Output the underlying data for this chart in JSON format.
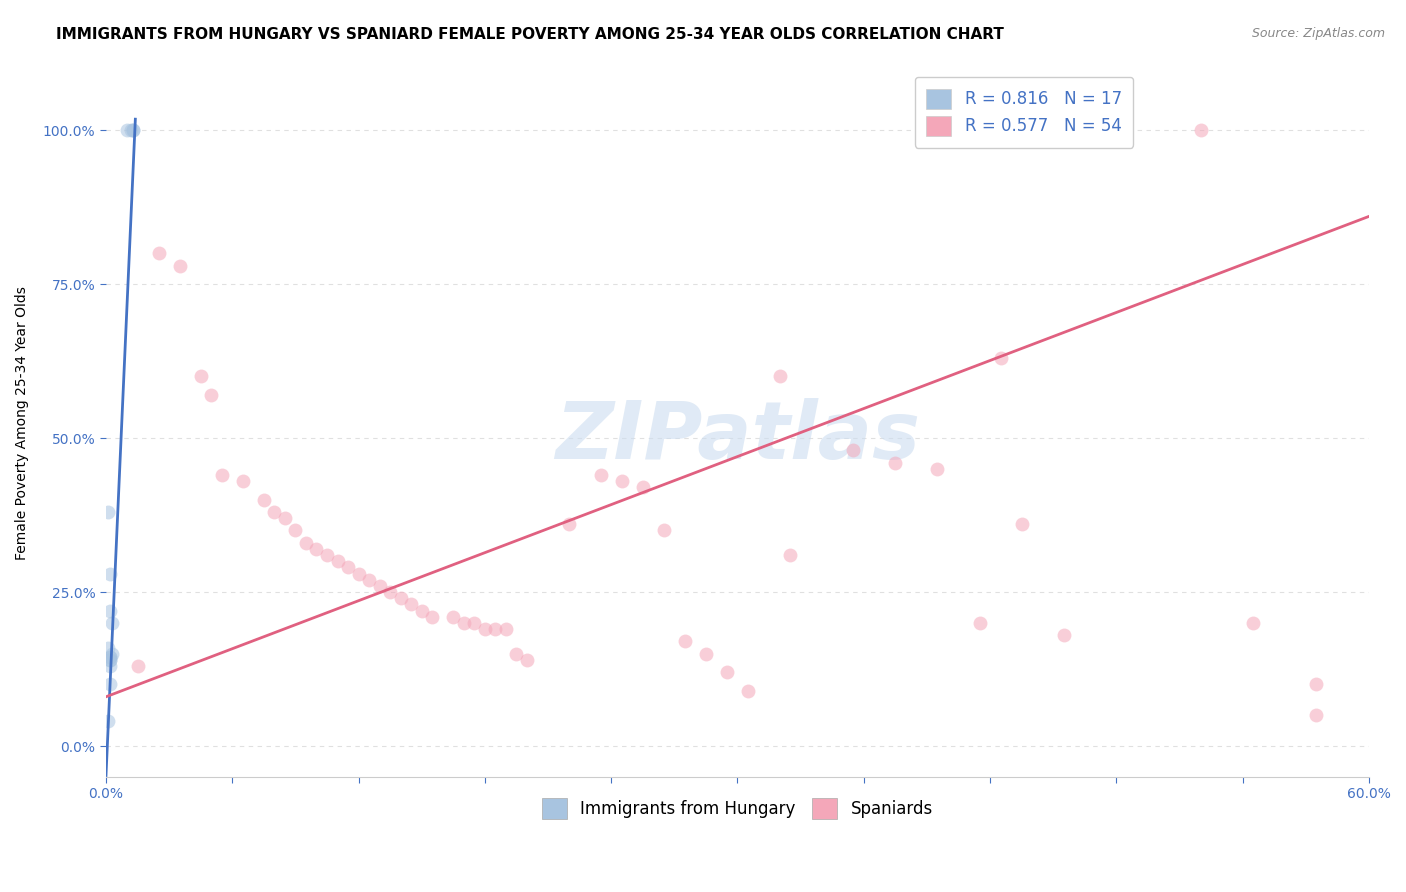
{
  "title": "IMMIGRANTS FROM HUNGARY VS SPANIARD FEMALE POVERTY AMONG 25-34 YEAR OLDS CORRELATION CHART",
  "source": "Source: ZipAtlas.com",
  "ylabel": "Female Poverty Among 25-34 Year Olds",
  "legend_label_blue": "Immigrants from Hungary",
  "legend_label_pink": "Spaniards",
  "R_blue": 0.816,
  "N_blue": 17,
  "R_pink": 0.577,
  "N_pink": 54,
  "xmin": 0.0,
  "xmax": 0.6,
  "ymin": -0.05,
  "ymax": 1.1,
  "xticks": [
    0.0,
    0.06,
    0.12,
    0.18,
    0.24,
    0.3,
    0.36,
    0.42,
    0.48,
    0.54,
    0.6
  ],
  "xtick_labels_show": [
    0,
    10
  ],
  "yticks": [
    0.0,
    0.25,
    0.5,
    0.75,
    1.0
  ],
  "blue_scatter_color": "#a8c4e0",
  "blue_line_color": "#4472c4",
  "pink_scatter_color": "#f4a7b9",
  "pink_line_color": "#e06080",
  "blue_scatter_x": [
    0.001,
    0.002,
    0.01,
    0.012,
    0.013,
    0.013,
    0.003,
    0.002,
    0.001,
    0.002,
    0.002,
    0.003,
    0.002,
    0.002,
    0.002,
    0.002,
    0.001
  ],
  "blue_scatter_y": [
    0.38,
    0.28,
    1.0,
    1.0,
    1.0,
    1.0,
    0.2,
    0.22,
    0.16,
    0.145,
    0.145,
    0.15,
    0.14,
    0.14,
    0.13,
    0.1,
    0.04
  ],
  "pink_scatter_x": [
    0.32,
    0.52,
    0.025,
    0.035,
    0.045,
    0.05,
    0.055,
    0.065,
    0.075,
    0.08,
    0.085,
    0.09,
    0.095,
    0.1,
    0.105,
    0.11,
    0.115,
    0.12,
    0.125,
    0.13,
    0.135,
    0.14,
    0.145,
    0.15,
    0.155,
    0.165,
    0.17,
    0.175,
    0.18,
    0.185,
    0.19,
    0.195,
    0.2,
    0.22,
    0.235,
    0.245,
    0.255,
    0.265,
    0.275,
    0.285,
    0.295,
    0.305,
    0.325,
    0.355,
    0.375,
    0.395,
    0.415,
    0.435,
    0.455,
    0.545,
    0.575,
    0.425,
    0.575,
    0.015
  ],
  "pink_scatter_y": [
    0.6,
    1.0,
    0.8,
    0.78,
    0.6,
    0.57,
    0.44,
    0.43,
    0.4,
    0.38,
    0.37,
    0.35,
    0.33,
    0.32,
    0.31,
    0.3,
    0.29,
    0.28,
    0.27,
    0.26,
    0.25,
    0.24,
    0.23,
    0.22,
    0.21,
    0.21,
    0.2,
    0.2,
    0.19,
    0.19,
    0.19,
    0.15,
    0.14,
    0.36,
    0.44,
    0.43,
    0.42,
    0.35,
    0.17,
    0.15,
    0.12,
    0.09,
    0.31,
    0.48,
    0.46,
    0.45,
    0.2,
    0.36,
    0.18,
    0.2,
    0.05,
    0.63,
    0.1,
    0.13
  ],
  "watermark_text": "ZIPatlas",
  "background_color": "#ffffff",
  "grid_color": "#e0e0e0",
  "title_fontsize": 11,
  "axis_label_fontsize": 10,
  "tick_fontsize": 10,
  "legend_fontsize": 12,
  "marker_size": 100,
  "marker_alpha": 0.55,
  "blue_line_x0": 0.0,
  "blue_line_x1": 0.014,
  "blue_line_y0": -0.05,
  "blue_line_y1": 1.02,
  "pink_line_x0": 0.0,
  "pink_line_x1": 0.6,
  "pink_line_y0": 0.08,
  "pink_line_y1": 0.86
}
